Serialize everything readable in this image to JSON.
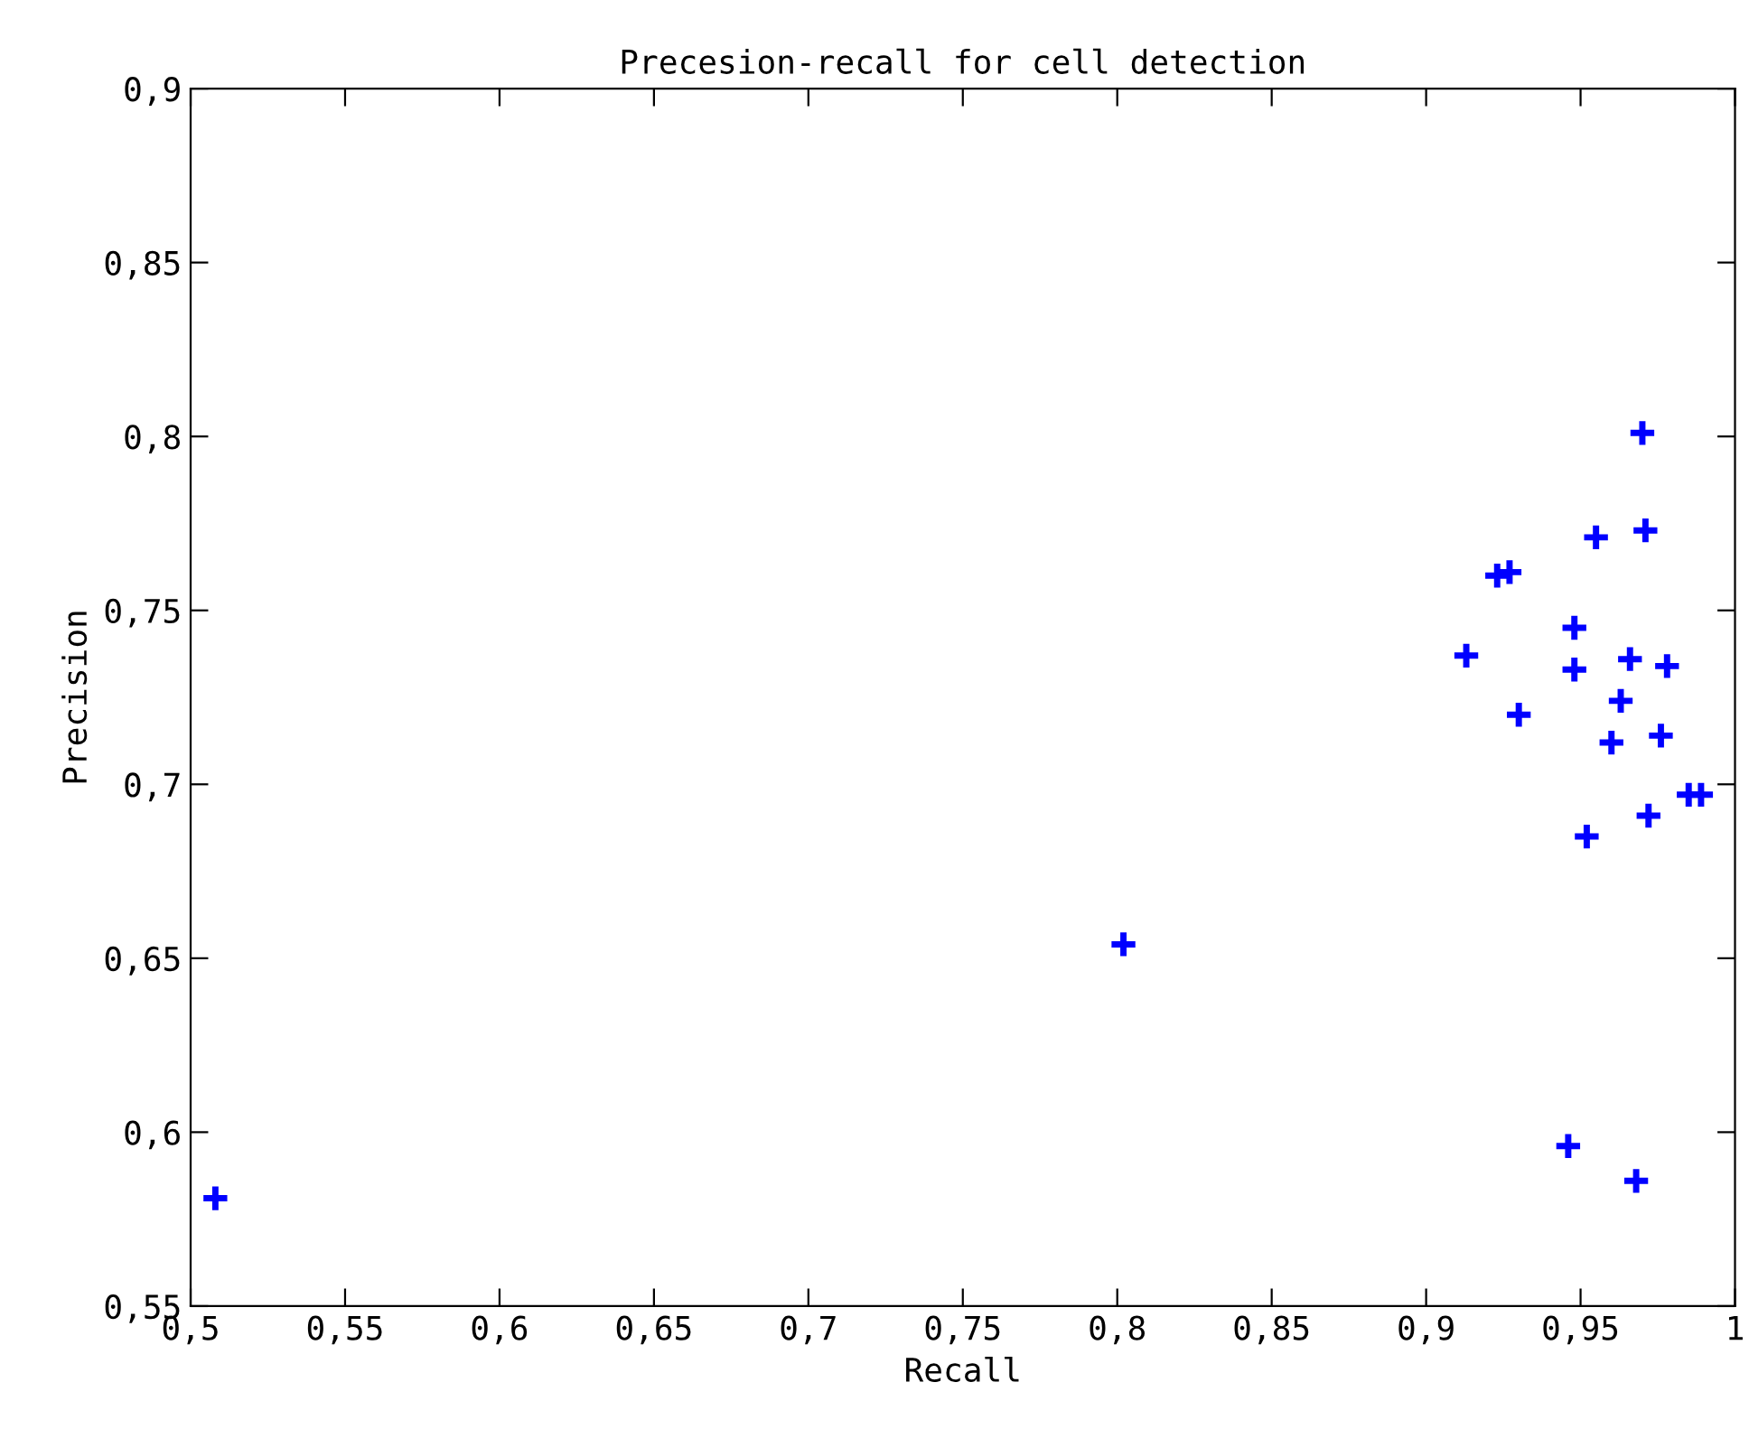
{
  "chart_data": {
    "type": "scatter",
    "title": "Precesion-recall for cell detection",
    "xlabel": "Recall",
    "ylabel": "Precision",
    "x": [
      0.97,
      0.955,
      0.971,
      0.923,
      0.927,
      0.913,
      0.948,
      0.948,
      0.966,
      0.978,
      0.963,
      0.93,
      0.96,
      0.976,
      0.985,
      0.989,
      0.972,
      0.952,
      0.802,
      0.946,
      0.968,
      0.508
    ],
    "series": [
      {
        "color": "#0000ff",
        "values": [
          0.801,
          0.771,
          0.773,
          0.76,
          0.761,
          0.737,
          0.745,
          0.733,
          0.736,
          0.734,
          0.724,
          0.72,
          0.712,
          0.714,
          0.697,
          0.697,
          0.691,
          0.685,
          0.654,
          0.596,
          0.586,
          0.581
        ]
      }
    ],
    "marker": "cross",
    "grid": false,
    "xlim": [
      0.5,
      1
    ],
    "ylim": [
      0.55,
      0.9
    ],
    "xticks": [
      {
        "value": 0.5,
        "label": "0,5"
      },
      {
        "value": 0.55,
        "label": "0,55"
      },
      {
        "value": 0.6,
        "label": "0,6"
      },
      {
        "value": 0.65,
        "label": "0,65"
      },
      {
        "value": 0.7,
        "label": "0,7"
      },
      {
        "value": 0.75,
        "label": "0,75"
      },
      {
        "value": 0.8,
        "label": "0,8"
      },
      {
        "value": 0.85,
        "label": "0,85"
      },
      {
        "value": 0.9,
        "label": "0,9"
      },
      {
        "value": 0.95,
        "label": "0,95"
      },
      1
    ],
    "yticks": [
      {
        "value": 0.55,
        "label": "0,55"
      },
      {
        "value": 0.6,
        "label": "0,6"
      },
      {
        "value": 0.65,
        "label": "0,65"
      },
      {
        "value": 0.7,
        "label": "0,7"
      },
      {
        "value": 0.75,
        "label": "0,75"
      },
      {
        "value": 0.8,
        "label": "0,8"
      },
      {
        "value": 0.85,
        "label": "0,85"
      },
      {
        "value": 0.9,
        "label": "0,9"
      }
    ]
  }
}
